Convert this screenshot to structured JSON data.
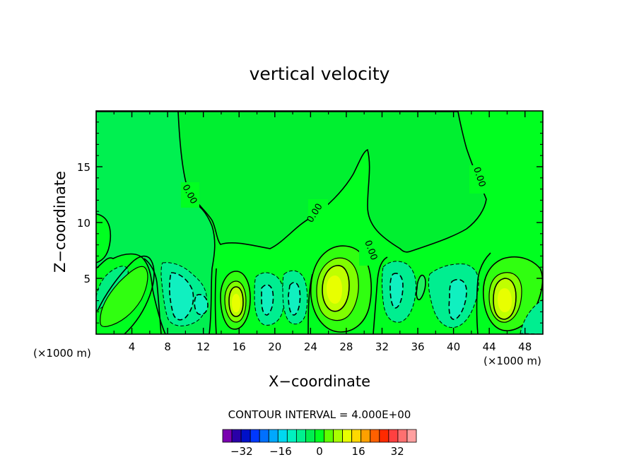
{
  "chart_data": {
    "type": "heatmap",
    "title": "vertical velocity",
    "xlabel": "X−coordinate",
    "ylabel": "Z−coordinate",
    "x_unit_left": "(×1000 m)",
    "x_unit_right": "(×1000 m)",
    "xlim": [
      0,
      50
    ],
    "ylim": [
      0,
      20
    ],
    "x_ticks": [
      4,
      8,
      12,
      16,
      20,
      24,
      28,
      32,
      36,
      40,
      44,
      48
    ],
    "x_tick_labels": [
      "4",
      "8",
      "12",
      "16",
      "20",
      "24",
      "28",
      "32",
      "36",
      "40",
      "44",
      "48"
    ],
    "y_ticks": [
      5,
      10,
      15
    ],
    "y_tick_labels": [
      "5",
      "10",
      "15"
    ],
    "contour_interval_text": "CONTOUR INTERVAL = 4.000E+00",
    "contour_interval": 4,
    "zero_contour_label": "0.00",
    "zero_contour_label_count": 4,
    "colorbar": {
      "levels": [
        -36,
        -32,
        -28,
        -24,
        -20,
        -16,
        -12,
        -8,
        -4,
        0,
        4,
        8,
        12,
        16,
        20,
        24,
        28,
        32,
        36
      ],
      "colors": [
        "#7a00b0",
        "#2a00a8",
        "#0010c8",
        "#0038ff",
        "#0070ff",
        "#00a8ff",
        "#00d8f0",
        "#00f0c0",
        "#00f090",
        "#00ee50",
        "#00ff20",
        "#60ff00",
        "#a8ff00",
        "#e8ff00",
        "#ffd800",
        "#ffa000",
        "#ff6000",
        "#ff2a00",
        "#ff4040",
        "#ff7070",
        "#ffa0a0"
      ],
      "tick_values": [
        -32,
        -16,
        0,
        16,
        32
      ],
      "tick_labels": [
        "−32",
        "−16",
        "0",
        "16",
        "32"
      ]
    },
    "cells": [
      {
        "x": 3.8,
        "z": 3.2,
        "min": 4,
        "max": 8
      },
      {
        "x": 9.5,
        "z": 3.5,
        "min": -8,
        "max": -4
      },
      {
        "x": 12.0,
        "z": 2.5,
        "min": -8,
        "max": -4
      },
      {
        "x": 15.8,
        "z": 2.5,
        "min": 12,
        "max": 16
      },
      {
        "x": 19.0,
        "z": 3.0,
        "min": -8,
        "max": -4
      },
      {
        "x": 22.0,
        "z": 3.0,
        "min": -8,
        "max": -4
      },
      {
        "x": 26.5,
        "z": 4.0,
        "min": 12,
        "max": 16
      },
      {
        "x": 34.0,
        "z": 3.3,
        "min": -8,
        "max": -4
      },
      {
        "x": 40.5,
        "z": 3.0,
        "min": -8,
        "max": -4
      },
      {
        "x": 45.5,
        "z": 2.7,
        "min": 12,
        "max": 16
      },
      {
        "x": 49.0,
        "z": 1.5,
        "min": -8,
        "max": -4
      }
    ]
  }
}
